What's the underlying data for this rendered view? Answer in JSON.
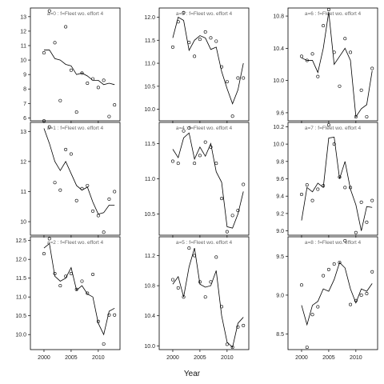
{
  "chart_data": {
    "type": "scatter",
    "xlabel": "Year",
    "ylabel": "",
    "x_ticks": [
      2000,
      2005,
      2010
    ],
    "xlim": [
      1997.5,
      2014
    ],
    "grid": false,
    "panels": [
      {
        "label": "a=0 : f=Fleet wo. effort 4",
        "ylim": [
          5.8,
          13.6
        ],
        "y_ticks": [
          6,
          7,
          8,
          9,
          10,
          11,
          12,
          13
        ],
        "points": [
          [
            2000,
            10.5
          ],
          [
            2001,
            13.4
          ],
          [
            2002,
            11.2
          ],
          [
            2003,
            7.2
          ],
          [
            2004,
            12.3
          ],
          [
            2005,
            9.3
          ],
          [
            2006,
            6.4
          ],
          [
            2007,
            9.1
          ],
          [
            2008,
            8.4
          ],
          [
            2009,
            8.7
          ],
          [
            2010,
            8.1
          ],
          [
            2011,
            8.6
          ],
          [
            2012,
            6.1
          ],
          [
            2013,
            6.9
          ]
        ],
        "fit": [
          [
            2000,
            10.7
          ],
          [
            2001,
            10.7
          ],
          [
            2002,
            10.1
          ],
          [
            2003,
            10.0
          ],
          [
            2004,
            9.7
          ],
          [
            2005,
            9.6
          ],
          [
            2006,
            9.0
          ],
          [
            2007,
            9.1
          ],
          [
            2008,
            8.9
          ],
          [
            2009,
            8.6
          ],
          [
            2010,
            8.6
          ],
          [
            2011,
            8.3
          ],
          [
            2012,
            8.4
          ],
          [
            2013,
            8.3
          ]
        ]
      },
      {
        "label": "a=3 : f=Fleet wo. effort 4",
        "ylim": [
          9.75,
          12.2
        ],
        "y_ticks": [
          10.0,
          10.5,
          11.0,
          11.5,
          12.0
        ],
        "points": [
          [
            2000,
            11.35
          ],
          [
            2001,
            11.9
          ],
          [
            2002,
            12.1
          ],
          [
            2003,
            11.45
          ],
          [
            2004,
            11.15
          ],
          [
            2005,
            11.52
          ],
          [
            2006,
            11.68
          ],
          [
            2007,
            11.55
          ],
          [
            2008,
            11.48
          ],
          [
            2009,
            10.92
          ],
          [
            2010,
            10.6
          ],
          [
            2011,
            9.85
          ],
          [
            2012,
            10.68
          ],
          [
            2013,
            10.68
          ]
        ],
        "fit": [
          [
            2000,
            11.55
          ],
          [
            2001,
            12.0
          ],
          [
            2002,
            11.93
          ],
          [
            2003,
            11.28
          ],
          [
            2004,
            11.5
          ],
          [
            2005,
            11.6
          ],
          [
            2006,
            11.55
          ],
          [
            2007,
            11.3
          ],
          [
            2008,
            11.35
          ],
          [
            2009,
            10.82
          ],
          [
            2010,
            10.45
          ],
          [
            2011,
            10.12
          ],
          [
            2012,
            10.42
          ],
          [
            2013,
            11.0
          ]
        ]
      },
      {
        "label": "a=6 : f=Fleet wo. effort 4",
        "ylim": [
          9.5,
          10.9
        ],
        "y_ticks": [
          9.6,
          10.0,
          10.4,
          10.8
        ],
        "points": [
          [
            2000,
            10.3
          ],
          [
            2001,
            10.25
          ],
          [
            2002,
            10.33
          ],
          [
            2003,
            10.05
          ],
          [
            2004,
            10.68
          ],
          [
            2005,
            10.88
          ],
          [
            2006,
            10.35
          ],
          [
            2007,
            9.93
          ],
          [
            2008,
            10.52
          ],
          [
            2009,
            10.35
          ],
          [
            2010,
            9.55
          ],
          [
            2011,
            9.88
          ],
          [
            2012,
            9.55
          ],
          [
            2013,
            10.15
          ]
        ],
        "fit": [
          [
            2000,
            10.28
          ],
          [
            2001,
            10.25
          ],
          [
            2002,
            10.25
          ],
          [
            2003,
            10.1
          ],
          [
            2004,
            10.4
          ],
          [
            2005,
            10.85
          ],
          [
            2006,
            10.2
          ],
          [
            2007,
            10.3
          ],
          [
            2008,
            10.4
          ],
          [
            2009,
            10.25
          ],
          [
            2010,
            9.55
          ],
          [
            2011,
            9.65
          ],
          [
            2012,
            9.7
          ],
          [
            2013,
            10.12
          ]
        ]
      },
      {
        "label": "a=1 : f=Fleet wo. effort 4",
        "ylim": [
          9.55,
          13.3
        ],
        "y_ticks": [
          10,
          11,
          12,
          13
        ],
        "points": [
          [
            2000,
            13.35
          ],
          [
            2001,
            13.15
          ],
          [
            2002,
            11.3
          ],
          [
            2003,
            11.05
          ],
          [
            2004,
            12.4
          ],
          [
            2005,
            12.25
          ],
          [
            2006,
            10.7
          ],
          [
            2007,
            11.1
          ],
          [
            2008,
            11.2
          ],
          [
            2009,
            10.35
          ],
          [
            2010,
            10.2
          ],
          [
            2011,
            9.65
          ],
          [
            2012,
            10.75
          ],
          [
            2013,
            11.0
          ]
        ],
        "fit": [
          [
            2000,
            13.1
          ],
          [
            2001,
            12.6
          ],
          [
            2002,
            12.0
          ],
          [
            2003,
            11.7
          ],
          [
            2004,
            12.0
          ],
          [
            2005,
            11.6
          ],
          [
            2006,
            11.2
          ],
          [
            2007,
            11.05
          ],
          [
            2008,
            11.15
          ],
          [
            2009,
            10.65
          ],
          [
            2010,
            10.25
          ],
          [
            2011,
            10.3
          ],
          [
            2012,
            10.55
          ],
          [
            2013,
            10.55
          ]
        ]
      },
      {
        "label": "a=4 : f=Fleet wo. effort 4",
        "ylim": [
          10.2,
          11.8
        ],
        "y_ticks": [
          10.5,
          11.0,
          11.5
        ],
        "points": [
          [
            2000,
            11.25
          ],
          [
            2001,
            11.22
          ],
          [
            2002,
            11.68
          ],
          [
            2003,
            11.72
          ],
          [
            2004,
            11.22
          ],
          [
            2005,
            11.33
          ],
          [
            2006,
            11.52
          ],
          [
            2007,
            11.45
          ],
          [
            2008,
            11.22
          ],
          [
            2009,
            10.72
          ],
          [
            2010,
            10.25
          ],
          [
            2011,
            10.48
          ],
          [
            2012,
            10.55
          ],
          [
            2013,
            10.92
          ]
        ],
        "fit": [
          [
            2000,
            11.42
          ],
          [
            2001,
            11.3
          ],
          [
            2002,
            11.58
          ],
          [
            2003,
            11.65
          ],
          [
            2004,
            11.28
          ],
          [
            2005,
            11.45
          ],
          [
            2006,
            11.32
          ],
          [
            2007,
            11.5
          ],
          [
            2008,
            11.1
          ],
          [
            2009,
            10.95
          ],
          [
            2010,
            10.32
          ],
          [
            2011,
            10.3
          ],
          [
            2012,
            10.5
          ],
          [
            2013,
            10.82
          ]
        ]
      },
      {
        "label": "a=7 : f=Fleet wo. effort 4",
        "ylim": [
          8.95,
          10.25
        ],
        "y_ticks": [
          9.0,
          9.2,
          9.4,
          9.6,
          9.8,
          10.0,
          10.2
        ],
        "points": [
          [
            2000,
            9.42
          ],
          [
            2001,
            9.53
          ],
          [
            2002,
            9.35
          ],
          [
            2003,
            9.48
          ],
          [
            2004,
            9.52
          ],
          [
            2005,
            10.22
          ],
          [
            2006,
            10.0
          ],
          [
            2007,
            9.62
          ],
          [
            2008,
            9.5
          ],
          [
            2009,
            9.5
          ],
          [
            2010,
            8.98
          ],
          [
            2011,
            9.33
          ],
          [
            2012,
            9.1
          ],
          [
            2013,
            9.35
          ]
        ],
        "fit": [
          [
            2000,
            9.12
          ],
          [
            2001,
            9.5
          ],
          [
            2002,
            9.45
          ],
          [
            2003,
            9.55
          ],
          [
            2004,
            9.5
          ],
          [
            2005,
            10.07
          ],
          [
            2006,
            10.08
          ],
          [
            2007,
            9.6
          ],
          [
            2008,
            9.8
          ],
          [
            2009,
            9.48
          ],
          [
            2010,
            9.3
          ],
          [
            2011,
            9.0
          ],
          [
            2012,
            9.28
          ],
          [
            2013,
            9.27
          ]
        ]
      },
      {
        "label": "a=2 : f=Fleet wo. effort 4",
        "ylim": [
          9.6,
          12.6
        ],
        "y_ticks": [
          10.0,
          10.5,
          11.0,
          11.5,
          12.0,
          12.5
        ],
        "points": [
          [
            2000,
            12.15
          ],
          [
            2001,
            12.55
          ],
          [
            2002,
            11.62
          ],
          [
            2003,
            11.3
          ],
          [
            2004,
            11.55
          ],
          [
            2005,
            11.62
          ],
          [
            2006,
            11.2
          ],
          [
            2007,
            11.42
          ],
          [
            2008,
            11.1
          ],
          [
            2009,
            11.6
          ],
          [
            2010,
            10.35
          ],
          [
            2011,
            9.75
          ],
          [
            2012,
            10.52
          ],
          [
            2013,
            10.52
          ]
        ],
        "fit": [
          [
            2000,
            12.3
          ],
          [
            2001,
            12.42
          ],
          [
            2002,
            11.55
          ],
          [
            2003,
            11.42
          ],
          [
            2004,
            11.5
          ],
          [
            2005,
            11.78
          ],
          [
            2006,
            11.18
          ],
          [
            2007,
            11.3
          ],
          [
            2008,
            11.08
          ],
          [
            2009,
            11.0
          ],
          [
            2010,
            10.3
          ],
          [
            2011,
            10.0
          ],
          [
            2012,
            10.62
          ],
          [
            2013,
            10.7
          ]
        ]
      },
      {
        "label": "a=5 : f=Fleet wo. effort 4",
        "ylim": [
          9.95,
          11.45
        ],
        "y_ticks": [
          10.0,
          10.4,
          10.8,
          11.2
        ],
        "points": [
          [
            2000,
            10.88
          ],
          [
            2001,
            10.77
          ],
          [
            2002,
            10.65
          ],
          [
            2003,
            11.3
          ],
          [
            2004,
            11.2
          ],
          [
            2005,
            10.85
          ],
          [
            2006,
            10.65
          ],
          [
            2007,
            10.85
          ],
          [
            2008,
            11.18
          ],
          [
            2009,
            10.52
          ],
          [
            2010,
            10.02
          ],
          [
            2011,
            9.98
          ],
          [
            2012,
            10.25
          ],
          [
            2013,
            10.27
          ]
        ],
        "fit": [
          [
            2000,
            10.82
          ],
          [
            2001,
            10.92
          ],
          [
            2002,
            10.65
          ],
          [
            2003,
            11.05
          ],
          [
            2004,
            11.3
          ],
          [
            2005,
            10.82
          ],
          [
            2006,
            10.78
          ],
          [
            2007,
            10.8
          ],
          [
            2008,
            11.0
          ],
          [
            2009,
            10.4
          ],
          [
            2010,
            10.05
          ],
          [
            2011,
            9.98
          ],
          [
            2012,
            10.3
          ],
          [
            2013,
            10.38
          ]
        ]
      },
      {
        "label": "a=8 : f=Fleet wo. effort 4",
        "ylim": [
          8.3,
          9.75
        ],
        "y_ticks": [
          8.5,
          9.0,
          9.5
        ],
        "points": [
          [
            2000,
            9.13
          ],
          [
            2001,
            8.33
          ],
          [
            2002,
            8.75
          ],
          [
            2003,
            8.85
          ],
          [
            2004,
            9.25
          ],
          [
            2005,
            9.33
          ],
          [
            2006,
            9.4
          ],
          [
            2007,
            9.42
          ],
          [
            2008,
            9.7
          ],
          [
            2009,
            8.88
          ],
          [
            2010,
            8.93
          ],
          [
            2011,
            9.0
          ],
          [
            2012,
            9.02
          ],
          [
            2013,
            9.3
          ]
        ],
        "fit": [
          [
            2000,
            8.87
          ],
          [
            2001,
            8.62
          ],
          [
            2002,
            8.87
          ],
          [
            2003,
            8.92
          ],
          [
            2004,
            9.08
          ],
          [
            2005,
            9.05
          ],
          [
            2006,
            9.2
          ],
          [
            2007,
            9.42
          ],
          [
            2008,
            9.35
          ],
          [
            2009,
            9.08
          ],
          [
            2010,
            8.9
          ],
          [
            2011,
            9.08
          ],
          [
            2012,
            9.05
          ],
          [
            2013,
            9.15
          ]
        ]
      }
    ]
  }
}
